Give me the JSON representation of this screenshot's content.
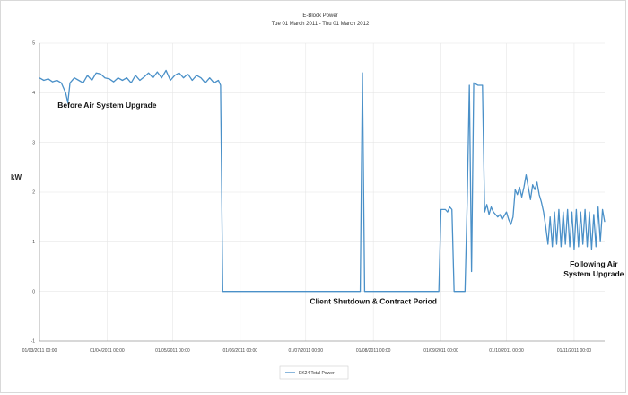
{
  "chart_data": {
    "type": "line",
    "title": "E-Block Power",
    "subtitle": "Tue 01 March 2011 - Thu 01 March 2012",
    "ylabel": "kW",
    "xlabel": "",
    "ylim": [
      -1,
      5
    ],
    "yticks": [
      -1,
      0,
      1,
      2,
      3,
      4,
      5
    ],
    "x_tick_labels": [
      "01/03/2011 00:00",
      "01/04/2011 00:00",
      "01/05/2011 00:00",
      "01/06/2011 00:00",
      "01/07/2011 00:00",
      "01/08/2011 00:00",
      "01/09/2011 00:00",
      "01/10/2011 00:00",
      "01/11/2011 00:00"
    ],
    "grid": true,
    "legend_position": "bottom-center",
    "annotations": [
      {
        "lines": [
          "Before Air System Upgrade"
        ],
        "x": "01/04/2011",
        "y": 3.7
      },
      {
        "lines": [
          "Client Shutdown & Contract Period"
        ],
        "x": "01/08/2011",
        "y": -0.25
      },
      {
        "lines": [
          "Following Air",
          "System Upgrade"
        ],
        "x": "10/11/2011",
        "y": 0.5
      }
    ],
    "series": [
      {
        "name": "EK24 Total Power",
        "color": "#4a90c8",
        "points": [
          [
            "01/03/2011",
            4.3
          ],
          [
            "03/03/2011",
            4.25
          ],
          [
            "05/03/2011",
            4.28
          ],
          [
            "07/03/2011",
            4.22
          ],
          [
            "09/03/2011",
            4.25
          ],
          [
            "11/03/2011",
            4.2
          ],
          [
            "13/03/2011",
            4.0
          ],
          [
            "14/03/2011",
            3.8
          ],
          [
            "15/03/2011",
            4.2
          ],
          [
            "17/03/2011",
            4.3
          ],
          [
            "19/03/2011",
            4.25
          ],
          [
            "21/03/2011",
            4.2
          ],
          [
            "23/03/2011",
            4.35
          ],
          [
            "25/03/2011",
            4.25
          ],
          [
            "27/03/2011",
            4.4
          ],
          [
            "29/03/2011",
            4.38
          ],
          [
            "31/03/2011",
            4.3
          ],
          [
            "02/04/2011",
            4.28
          ],
          [
            "04/04/2011",
            4.22
          ],
          [
            "06/04/2011",
            4.3
          ],
          [
            "08/04/2011",
            4.25
          ],
          [
            "10/04/2011",
            4.3
          ],
          [
            "12/04/2011",
            4.2
          ],
          [
            "14/04/2011",
            4.35
          ],
          [
            "16/04/2011",
            4.25
          ],
          [
            "18/04/2011",
            4.32
          ],
          [
            "20/04/2011",
            4.4
          ],
          [
            "22/04/2011",
            4.3
          ],
          [
            "24/04/2011",
            4.42
          ],
          [
            "26/04/2011",
            4.3
          ],
          [
            "28/04/2011",
            4.45
          ],
          [
            "30/04/2011",
            4.25
          ],
          [
            "02/05/2011",
            4.35
          ],
          [
            "04/05/2011",
            4.4
          ],
          [
            "06/05/2011",
            4.3
          ],
          [
            "08/05/2011",
            4.38
          ],
          [
            "10/05/2011",
            4.25
          ],
          [
            "12/05/2011",
            4.35
          ],
          [
            "14/05/2011",
            4.3
          ],
          [
            "16/05/2011",
            4.2
          ],
          [
            "18/05/2011",
            4.3
          ],
          [
            "20/05/2011",
            4.2
          ],
          [
            "22/05/2011",
            4.25
          ],
          [
            "23/05/2011",
            4.15
          ],
          [
            "24/05/2011",
            0.0
          ],
          [
            "01/06/2011",
            0.0
          ],
          [
            "01/07/2011",
            0.0
          ],
          [
            "23/07/2011",
            0.0
          ],
          [
            "26/07/2011",
            0.0
          ],
          [
            "27/07/2011",
            4.4
          ],
          [
            "28/07/2011",
            0.0
          ],
          [
            "01/08/2011",
            0.0
          ],
          [
            "30/08/2011",
            0.0
          ],
          [
            "31/08/2011",
            0.0
          ],
          [
            "01/09/2011",
            1.65
          ],
          [
            "03/09/2011",
            1.65
          ],
          [
            "04/09/2011",
            1.6
          ],
          [
            "05/09/2011",
            1.7
          ],
          [
            "06/09/2011",
            1.65
          ],
          [
            "07/09/2011",
            0.0
          ],
          [
            "11/09/2011",
            0.0
          ],
          [
            "12/09/2011",
            0.0
          ],
          [
            "13/09/2011",
            1.8
          ],
          [
            "14/09/2011",
            4.15
          ],
          [
            "15/09/2011",
            0.4
          ],
          [
            "16/09/2011",
            4.2
          ],
          [
            "18/09/2011",
            4.15
          ],
          [
            "20/09/2011",
            4.15
          ],
          [
            "21/09/2011",
            1.6
          ],
          [
            "22/09/2011",
            1.75
          ],
          [
            "23/09/2011",
            1.55
          ],
          [
            "24/09/2011",
            1.7
          ],
          [
            "25/09/2011",
            1.6
          ],
          [
            "27/09/2011",
            1.5
          ],
          [
            "28/09/2011",
            1.55
          ],
          [
            "29/09/2011",
            1.45
          ],
          [
            "01/10/2011",
            1.6
          ],
          [
            "02/10/2011",
            1.45
          ],
          [
            "03/10/2011",
            1.35
          ],
          [
            "04/10/2011",
            1.5
          ],
          [
            "05/10/2011",
            2.05
          ],
          [
            "06/10/2011",
            1.95
          ],
          [
            "07/10/2011",
            2.1
          ],
          [
            "08/10/2011",
            1.9
          ],
          [
            "09/10/2011",
            2.1
          ],
          [
            "10/10/2011",
            2.35
          ],
          [
            "11/10/2011",
            2.1
          ],
          [
            "12/10/2011",
            1.85
          ],
          [
            "13/10/2011",
            2.15
          ],
          [
            "14/10/2011",
            2.05
          ],
          [
            "15/10/2011",
            2.2
          ],
          [
            "16/10/2011",
            1.95
          ],
          [
            "17/10/2011",
            1.8
          ],
          [
            "18/10/2011",
            1.6
          ],
          [
            "19/10/2011",
            1.3
          ],
          [
            "20/10/2011",
            0.95
          ],
          [
            "21/10/2011",
            1.5
          ],
          [
            "22/10/2011",
            0.9
          ],
          [
            "23/10/2011",
            1.6
          ],
          [
            "24/10/2011",
            0.95
          ],
          [
            "25/10/2011",
            1.65
          ],
          [
            "26/10/2011",
            0.9
          ],
          [
            "27/10/2011",
            1.6
          ],
          [
            "28/10/2011",
            0.95
          ],
          [
            "29/10/2011",
            1.65
          ],
          [
            "30/10/2011",
            0.9
          ],
          [
            "31/10/2011",
            1.6
          ],
          [
            "01/11/2011",
            0.85
          ],
          [
            "02/11/2011",
            1.65
          ],
          [
            "03/11/2011",
            0.9
          ],
          [
            "04/11/2011",
            1.6
          ],
          [
            "05/11/2011",
            0.95
          ],
          [
            "06/11/2011",
            1.65
          ],
          [
            "07/11/2011",
            0.9
          ],
          [
            "08/11/2011",
            1.6
          ],
          [
            "09/11/2011",
            0.85
          ],
          [
            "10/11/2011",
            1.55
          ],
          [
            "11/11/2011",
            0.9
          ],
          [
            "12/11/2011",
            1.7
          ],
          [
            "13/11/2011",
            1.0
          ],
          [
            "14/11/2011",
            1.65
          ],
          [
            "15/11/2011",
            1.4
          ]
        ]
      }
    ]
  }
}
